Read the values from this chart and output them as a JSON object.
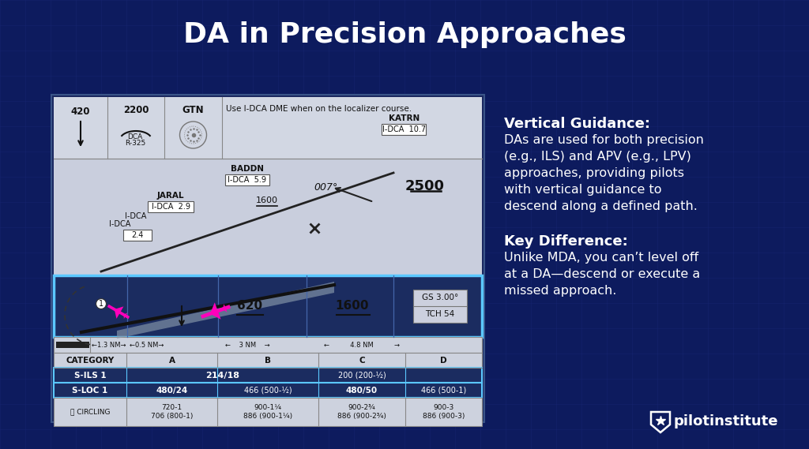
{
  "title": "DA in Precision Approaches",
  "bg_color": "#0d1b5e",
  "grid_color": "#1a2a78",
  "title_color": "#ffffff",
  "title_fontsize": 26,
  "vg_title": "Vertical Guidance:",
  "vg_body_lines": [
    "DAs are used for both precision",
    "(e.g., ILS) and APV (e.g., LPV)",
    "approaches, providing pilots",
    "with vertical guidance to",
    "descend along a defined path."
  ],
  "kd_title": "Key Difference:",
  "kd_body_lines": [
    "Unlike MDA, you can’t level off",
    "at a DA—descend or execute a",
    "missed approach."
  ],
  "logo_text": "pilotinstitute",
  "highlight_border": "#5bc8ff",
  "table_headers": [
    "CATEGORY",
    "A",
    "B",
    "C",
    "D"
  ],
  "ils_row": [
    "S-ILS 1",
    "214/18",
    "",
    "200 (200-½)",
    ""
  ],
  "loc_row": [
    "S-LOC 1",
    "480/24",
    "466 (500-½)",
    "480/50",
    "466 (500-1)"
  ],
  "circ_row": [
    "Ⓒ CIRCLING",
    "720-1\n706 (800-1)",
    "900-1¼\n886 (900-1¼)",
    "900-2¾\n886 (900-2¾)",
    "900-3\n886 (900-3)"
  ]
}
